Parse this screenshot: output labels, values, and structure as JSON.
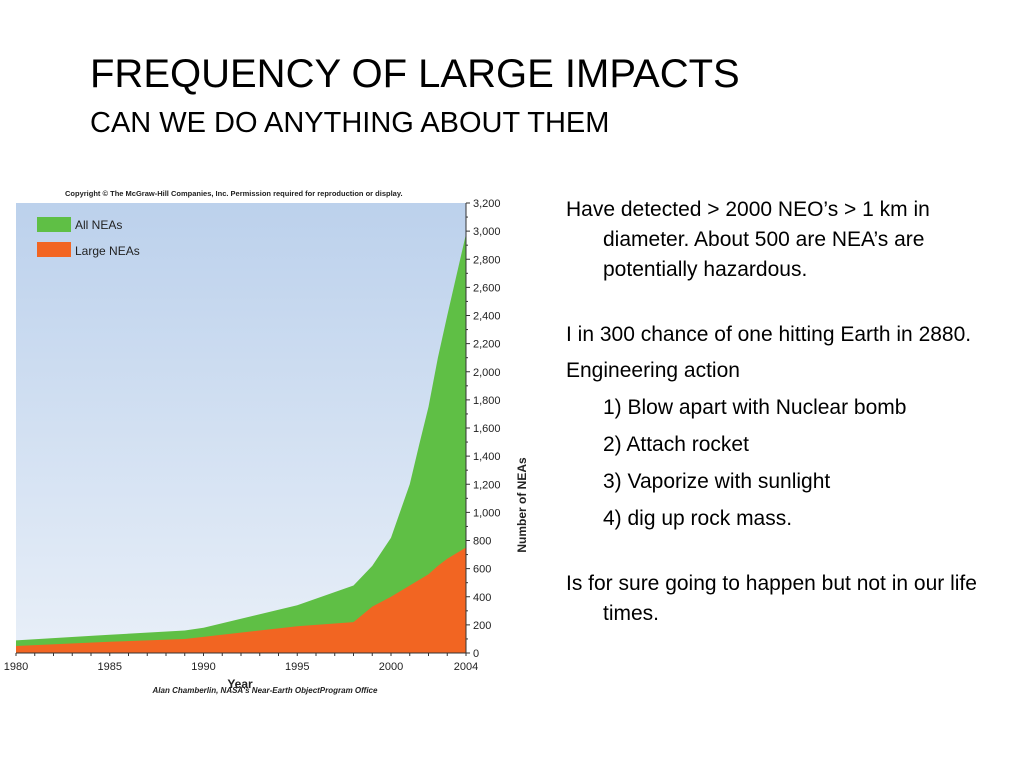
{
  "slide": {
    "title": "FREQUENCY OF LARGE IMPACTS",
    "subtitle": "CAN WE DO ANYTHING ABOUT THEM"
  },
  "bullets": {
    "b1": "Have detected > 2000 NEO’s > 1 km in diameter. About 500 are NEA’s are potentially hazardous.",
    "b2": "I in 300 chance of one hitting Earth in 2880.",
    "b3": "Engineering action",
    "sub1": "1) Blow apart with Nuclear bomb",
    "sub2": "2) Attach rocket",
    "sub3": "3) Vaporize with sunlight",
    "sub4": "4) dig up rock mass.",
    "b4": "Is for sure going to happen but not in our life times."
  },
  "chart_data": {
    "type": "area",
    "copyright": "Copyright © The McGraw-Hill Companies, Inc. Permission required for reproduction or display.",
    "credit": "Alan Chamberlin, NASA's Near-Earth ObjectProgram Office",
    "xlabel": "Year",
    "ylabel": "Number of NEAs",
    "xlim": [
      1980,
      2004
    ],
    "ylim": [
      0,
      3200
    ],
    "x_ticks": [
      "1980",
      "1985",
      "1990",
      "1995",
      "2000",
      "2004"
    ],
    "y_ticks": [
      "0",
      "200",
      "400",
      "600",
      "800",
      "1,000",
      "1,200",
      "1,400",
      "1,600",
      "1,800",
      "2,000",
      "2,200",
      "2,400",
      "2,600",
      "2,800",
      "3,000",
      "3,200"
    ],
    "legend_position": "top-left",
    "x": [
      1980,
      1985,
      1989,
      1990,
      1995,
      1998,
      1999,
      2000,
      2001,
      2001.5,
      2002,
      2002.5,
      2003,
      2004
    ],
    "series": [
      {
        "name": "All NEAs",
        "color": "#5fbf45",
        "values": [
          90,
          130,
          160,
          180,
          340,
          480,
          620,
          820,
          1200,
          1480,
          1750,
          2100,
          2400,
          2980
        ]
      },
      {
        "name": "Large NEAs",
        "color": "#f26522",
        "values": [
          50,
          80,
          100,
          115,
          190,
          220,
          330,
          400,
          480,
          520,
          560,
          620,
          670,
          750
        ]
      }
    ],
    "background_color": "#c6d8ef"
  }
}
